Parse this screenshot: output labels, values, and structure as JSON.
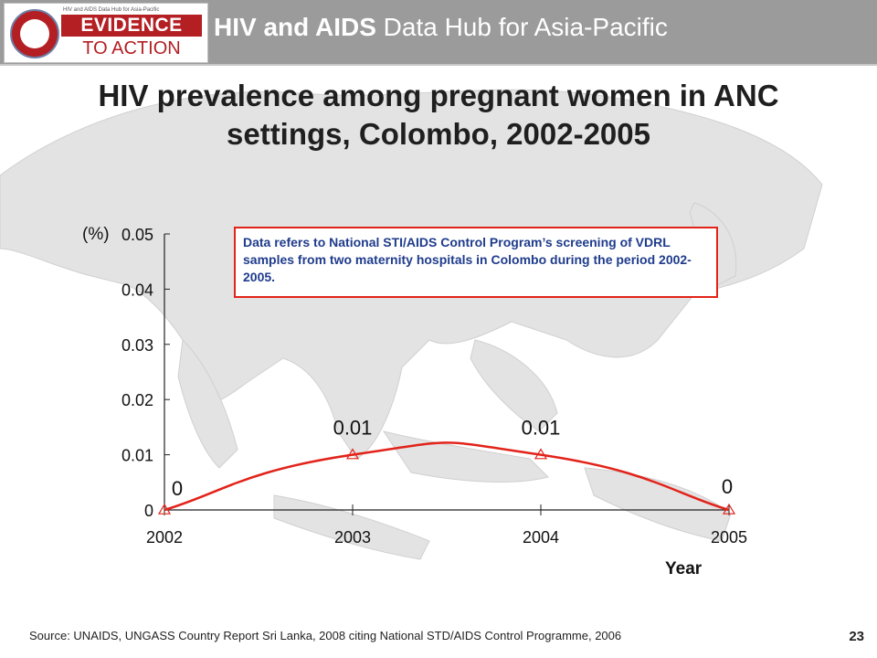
{
  "header": {
    "logo_small_text": "HIV and AIDS Data Hub for Asia-Pacific",
    "logo_line1": "EVIDENCE",
    "logo_line2": "TO ACTION",
    "hub_title_bold": "HIV and AIDS",
    "hub_title_rest": " Data Hub for Asia-Pacific",
    "colors": {
      "band": "#9b9b9b",
      "brand_red": "#b41f24"
    }
  },
  "title": "HIV prevalence among pregnant women in ANC settings, Colombo, 2002-2005",
  "note": "Data refers to National STI/AIDS Control Program’s screening of VDRL samples from two maternity hospitals in Colombo during the period 2002-2005.",
  "source": "Source: UNAIDS, UNGASS Country Report Sri Lanka, 2008 citing National STD/AIDS Control Programme, 2006",
  "page_number": "23",
  "chart_data": {
    "type": "line",
    "title": "",
    "ylabel": "(%)",
    "xlabel": "Year",
    "categories": [
      "2002",
      "2003",
      "2004",
      "2005"
    ],
    "series": [
      {
        "values": [
          0,
          0.01,
          0.01,
          0
        ],
        "color": "#e2231a"
      }
    ],
    "data_labels": [
      "0",
      "0.01",
      "0.01",
      "0"
    ],
    "ylim": [
      0,
      0.05
    ],
    "yticks": [
      "0",
      "0.01",
      "0.02",
      "0.03",
      "0.04",
      "0.05"
    ],
    "smoothed": true,
    "grid": false,
    "legend": "none"
  }
}
